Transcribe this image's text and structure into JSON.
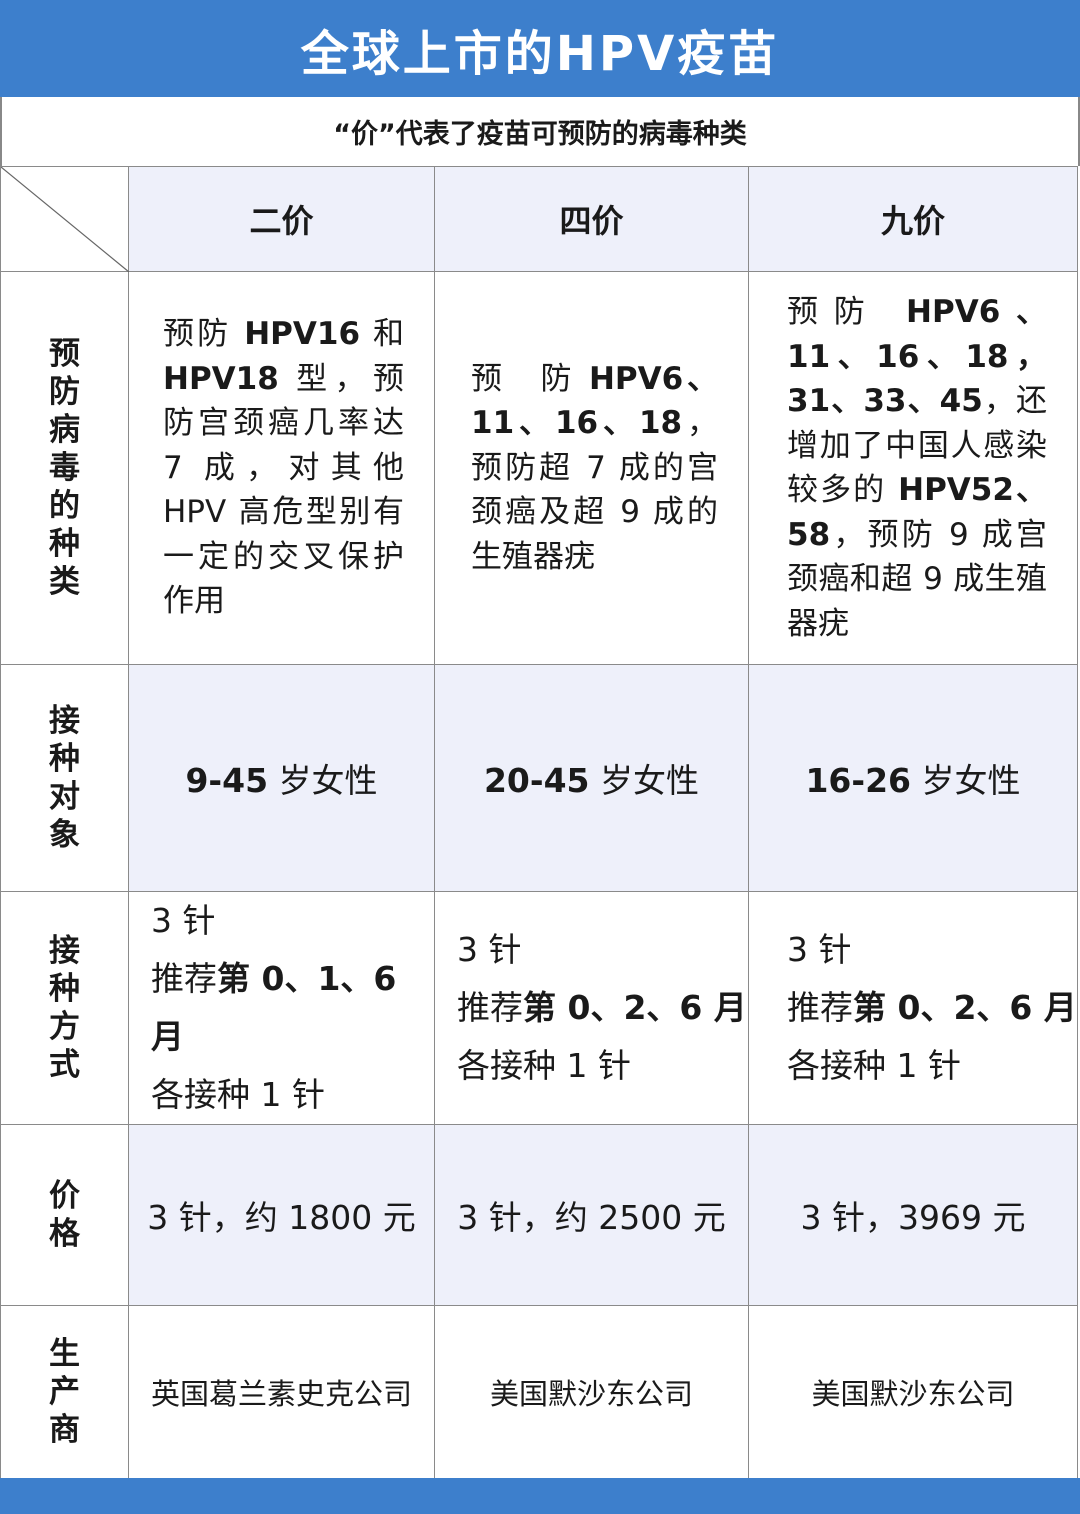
{
  "title": "全球上市的HPV疫苗",
  "subtitle": "“价”代表了疫苗可预防的病毒种类",
  "columns": [
    "二价",
    "四价",
    "九价"
  ],
  "rows": {
    "prevent": {
      "label": "预防病毒的种类",
      "cells": [
        [
          {
            "t": "预防 "
          },
          {
            "t": "HPV16",
            "b": 1
          },
          {
            "t": " 和 "
          },
          {
            "t": "HPV18",
            "b": 1
          },
          {
            "t": " 型，预防宫颈癌几率达 7 成，对其他 HPV 高危型别有一定的交叉保护作用"
          }
        ],
        [
          {
            "t": "预　防 "
          },
          {
            "t": "HPV6、11、16、18",
            "b": 1
          },
          {
            "t": "，预防超 7 成的宫颈癌及超 9 成的生殖器疣"
          }
        ],
        [
          {
            "t": "预防 "
          },
          {
            "t": "HPV6、11、16、18，31、33、45",
            "b": 1
          },
          {
            "t": "，还增加了中国人感染较多的 "
          },
          {
            "t": "HPV52、58",
            "b": 1
          },
          {
            "t": "，预防 9 成宫颈癌和超 9 成生殖器疣"
          }
        ]
      ]
    },
    "target": {
      "label": "接种对象",
      "cells": [
        [
          {
            "t": "9-45",
            "b": 1
          },
          {
            "t": " 岁女性"
          }
        ],
        [
          {
            "t": "20-45",
            "b": 1
          },
          {
            "t": " 岁女性"
          }
        ],
        [
          {
            "t": "16-26",
            "b": 1
          },
          {
            "t": " 岁女性"
          }
        ]
      ]
    },
    "method": {
      "label": "接种方式",
      "cells": [
        [
          "3 针",
          [
            {
              "t": "推荐"
            },
            {
              "t": "第 0、1、6 月",
              "b": 1
            }
          ],
          "各接种 1 针"
        ],
        [
          "3 针",
          [
            {
              "t": "推荐"
            },
            {
              "t": "第 0、2、6 月",
              "b": 1
            }
          ],
          "各接种 1 针"
        ],
        [
          "3 针",
          [
            {
              "t": "推荐"
            },
            {
              "t": "第 0、2、6 月",
              "b": 1
            }
          ],
          "各接种 1 针"
        ]
      ]
    },
    "price": {
      "label": "价格",
      "cells": [
        "3 针，约 1800 元",
        "3 针，约 2500 元",
        "3 针，3969 元"
      ]
    },
    "maker": {
      "label": "生产商",
      "cells": [
        "英国葛兰素史克公司",
        "美国默沙东公司",
        "美国默沙东公司"
      ]
    }
  },
  "colors": {
    "accent": "#3d7fcc",
    "shade": "#eef0fa",
    "border": "#8a8a8a"
  }
}
